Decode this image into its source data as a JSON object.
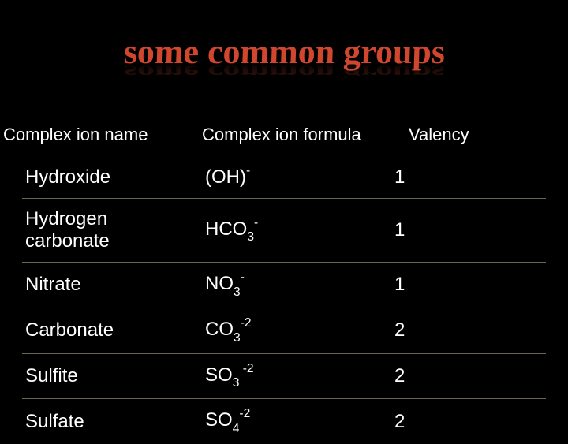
{
  "title": {
    "text": "some common groups",
    "fill_color": "#d1462e",
    "font_family": "Comic Sans MS, cursive",
    "font_weight": "bold"
  },
  "table": {
    "headers": {
      "name": "Complex ion name",
      "formula": "Complex ion formula",
      "valency": "Valency"
    },
    "header_fontsize": 22,
    "cell_fontsize": 24,
    "text_color": "#ffffff",
    "divider_color": "#6a6450",
    "background_color": "#000000",
    "columns": [
      "name",
      "formula",
      "valency"
    ],
    "rows": [
      {
        "name": "Hydroxide",
        "formula": "(OH)<sup>-</sup>",
        "valency": "1"
      },
      {
        "name": "Hydrogen carbonate",
        "formula": "HCO<sub>3</sub><sup>-</sup>",
        "valency": "1"
      },
      {
        "name": "Nitrate",
        "formula": "NO<sub>3</sub><sup>-</sup>",
        "valency": "1"
      },
      {
        "name": "Carbonate",
        "formula": "CO<sub>3</sub><sup>-2</sup>",
        "valency": "2"
      },
      {
        "name": "Sulfite",
        "formula": "SO<sub>3</sub><sup>&nbsp;-2</sup>",
        "valency": "2"
      },
      {
        "name": "Sulfate",
        "formula": "SO<sub>4</sub><sup>-2</sup>",
        "valency": "2"
      }
    ]
  }
}
